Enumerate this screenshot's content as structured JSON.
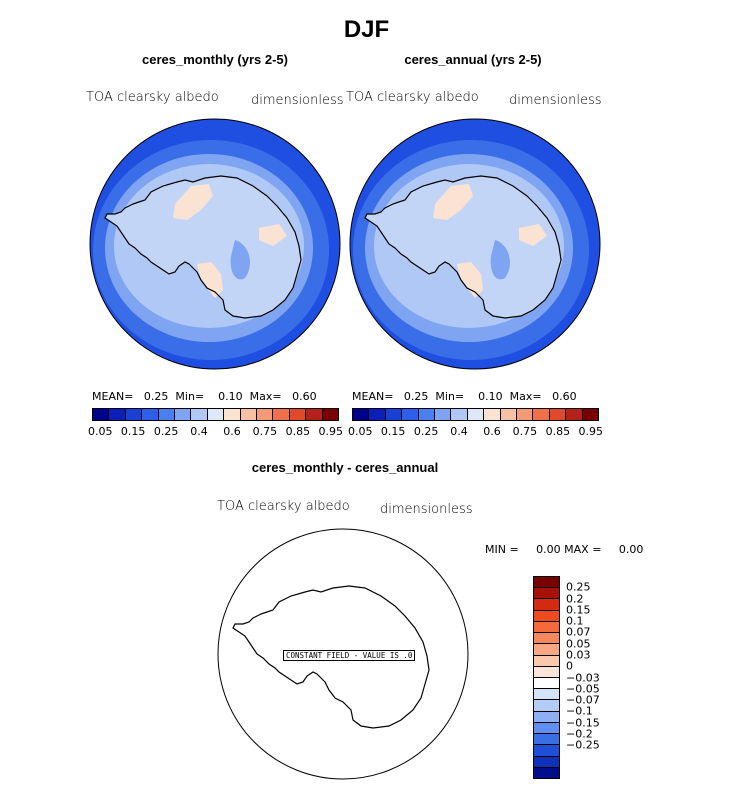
{
  "title": "DJF",
  "panels": [
    {
      "title": "ceres_monthly (yrs 2-5)",
      "field_label": "TOA clearsky albedo",
      "units": "dimensionless",
      "stats": {
        "mean_label": "MEAN=",
        "mean": "0.25",
        "min_label": "Min=",
        "min": "0.10",
        "max_label": "Max=",
        "max": "0.60"
      }
    },
    {
      "title": "ceres_annual (yrs 2-5)",
      "field_label": "TOA clearsky albedo",
      "units": "dimensionless",
      "stats": {
        "mean_label": "MEAN=",
        "mean": "0.25",
        "min_label": "Min=",
        "min": "0.10",
        "max_label": "Max=",
        "max": "0.60"
      }
    }
  ],
  "colorbar": {
    "colors": [
      "#00008b",
      "#0a1fb8",
      "#1a3fd6",
      "#2d5fea",
      "#4a7ff0",
      "#7ea4f2",
      "#b0c8f5",
      "#dde9fa",
      "#fbe3d4",
      "#f7c1a4",
      "#f49a76",
      "#f0704c",
      "#e04a2a",
      "#b3221a",
      "#7a0000"
    ],
    "ticks": [
      "0.05",
      "0.15",
      "0.25",
      "0.4",
      "0.6",
      "0.75",
      "0.85",
      "0.95"
    ]
  },
  "diff": {
    "title": "ceres_monthly - ceres_annual",
    "field_label": "TOA clearsky albedo",
    "units": "dimensionless",
    "stats_text": "MIN =     0.00 MAX =     0.00",
    "constant_label": "CONSTANT FIELD - VALUE IS .0",
    "colorbar": {
      "colors": [
        "#7a0000",
        "#a61208",
        "#d42a12",
        "#f04a1f",
        "#f56a3a",
        "#f7885c",
        "#f7a882",
        "#f9c9ac",
        "#fbe5d6",
        "#ffffff",
        "#d6e4fa",
        "#b4cdf6",
        "#8cb0f2",
        "#5f8ff0",
        "#3a6ee6",
        "#1f4fd6",
        "#0f32b8",
        "#000e8c"
      ],
      "ticks": [
        "0.25",
        "0.2",
        "0.15",
        "0.1",
        "0.07",
        "0.05",
        "0.03",
        "0",
        "−0.03",
        "−0.05",
        "−0.07",
        "−0.1",
        "−0.15",
        "−0.2",
        "−0.25"
      ]
    }
  }
}
